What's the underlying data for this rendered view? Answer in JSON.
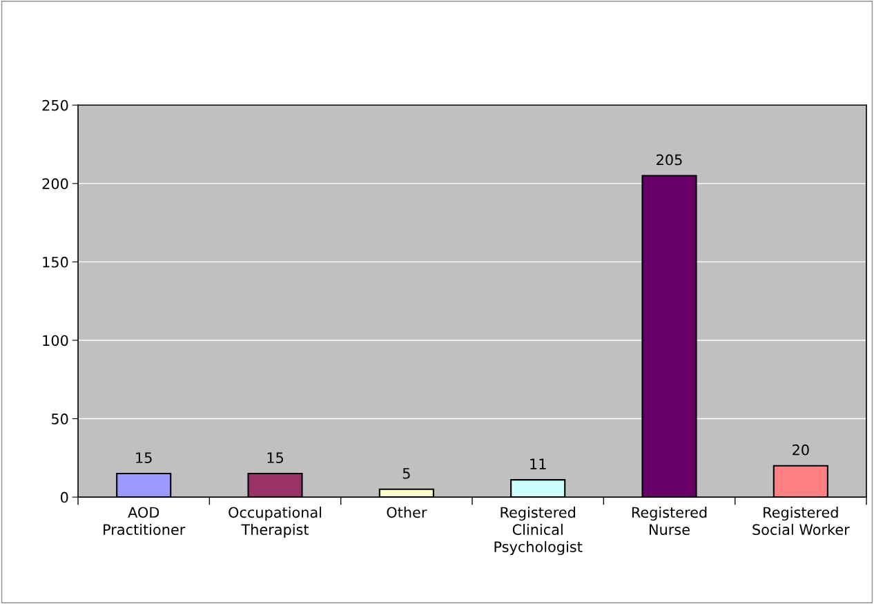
{
  "chart_data": {
    "type": "bar",
    "categories": [
      "AOD\nPractitioner",
      "Occupational\nTherapist",
      "Other",
      "Registered\nClinical\nPsychologist",
      "Registered\nNurse",
      "Registered\nSocial Worker"
    ],
    "values": [
      15,
      15,
      5,
      11,
      205,
      20
    ],
    "colors": [
      "#9999ff",
      "#993366",
      "#ffffcc",
      "#ccffff",
      "#660066",
      "#ff8080"
    ],
    "ylim": [
      0,
      250
    ],
    "yticks": [
      0,
      50,
      100,
      150,
      200,
      250
    ],
    "grid": "y",
    "data_labels": true
  }
}
